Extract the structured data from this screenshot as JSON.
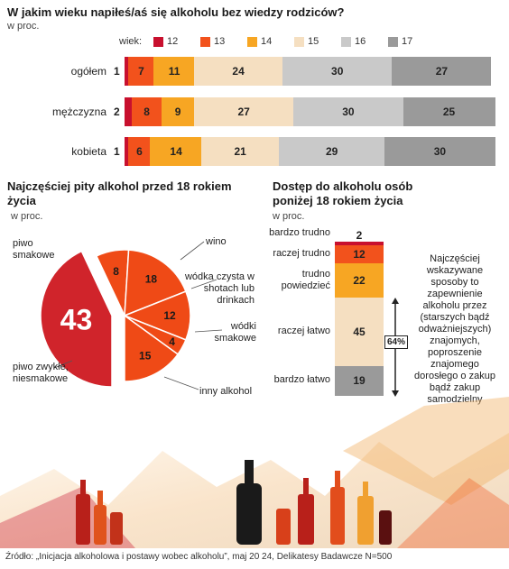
{
  "colors": {
    "12": "#c8102e",
    "13": "#f2521c",
    "14": "#f7a623",
    "15": "#f5dfc1",
    "16": "#c9c9c9",
    "17": "#9a9a9a",
    "pie_main": "#d0242b",
    "pie_slice": "#ef4a16"
  },
  "chart_data": [
    {
      "type": "bar",
      "title": "W jakim wieku napiłeś/aś się alkoholu bez wiedzy rodziców?",
      "subtitle": "w proc.",
      "legend_title": "wiek:",
      "legend_position": "top",
      "stacked": true,
      "orientation": "horizontal",
      "categories": [
        "ogółem",
        "mężczyzna",
        "kobieta"
      ],
      "series": [
        {
          "name": "12",
          "values": [
            1,
            2,
            1
          ]
        },
        {
          "name": "13",
          "values": [
            7,
            8,
            6
          ]
        },
        {
          "name": "14",
          "values": [
            11,
            9,
            14
          ]
        },
        {
          "name": "15",
          "values": [
            24,
            27,
            21
          ]
        },
        {
          "name": "16",
          "values": [
            30,
            30,
            29
          ]
        },
        {
          "name": "17",
          "values": [
            27,
            25,
            30
          ]
        }
      ]
    },
    {
      "type": "pie",
      "title": "Najczęściej pity alkohol przed 18 rokiem życia",
      "subtitle": "w proc.",
      "slices": [
        {
          "label": "piwo smakowe / piwo zwykłe, niesmakowe",
          "value": 43
        },
        {
          "label": "wino",
          "value": 8
        },
        {
          "label": "wódka czysta w shotach lub drinkach",
          "value": 18
        },
        {
          "label": "wódki smakowe",
          "value": 12
        },
        {
          "label": "inny alkohol",
          "value": 4
        },
        {
          "label": "",
          "value": 15
        }
      ],
      "labels": {
        "piwo_smakowe": "piwo smakowe",
        "piwo_zwykle": "piwo zwykłe, niesmakowe",
        "wino": "wino",
        "wodka_czysta": "wódka czysta w shotach lub drinkach",
        "wodki_smakowe": "wódki smakowe",
        "inny": "inny alkohol"
      }
    },
    {
      "type": "bar",
      "title": "Dostęp do alkoholu osób poniżej 18 rokiem życia",
      "subtitle": "w proc.",
      "stacked": true,
      "orientation": "vertical",
      "categories": [
        "bardzo trudno",
        "raczej trudno",
        "trudno powiedzieć",
        "raczej łatwo",
        "bardzo łatwo"
      ],
      "values": [
        2,
        12,
        22,
        45,
        19
      ],
      "bracket_label": "64%",
      "note": "Najczęściej wskazywane sposoby to zapewnienie alkoholu przez (starszych bądź odważniejszych) znajomych, poproszenie znajomego dorosłego o zakup bądź zakup samodzielny"
    }
  ],
  "source": "Źródło: „Inicjacja alkoholowa i postawy wobec alkoholu”, maj 20 24, Delikatesy Badawcze N=500"
}
